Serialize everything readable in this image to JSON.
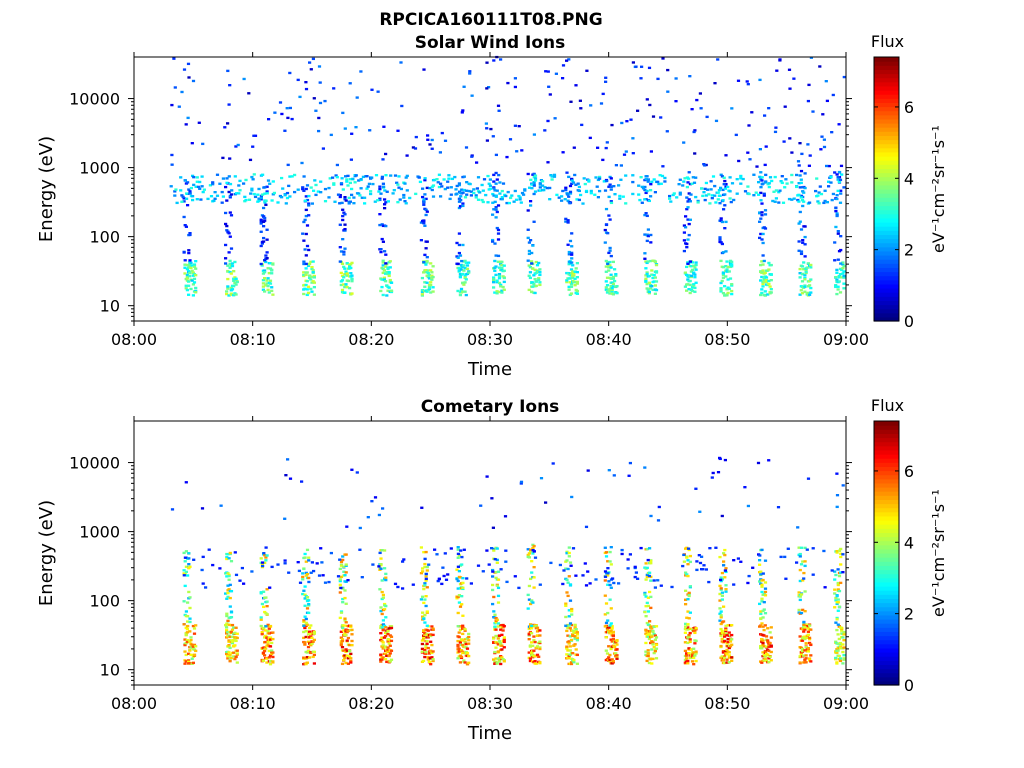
{
  "figure_title": "RPCICA160111T08.PNG",
  "colors": {
    "colormap": [
      "#00007f",
      "#0000ff",
      "#007fff",
      "#00ffff",
      "#7fff7f",
      "#ffff00",
      "#ff7f00",
      "#ff0000",
      "#7f0000"
    ]
  },
  "chart_data": [
    {
      "type": "heatmap",
      "title": "Solar Wind Ions",
      "xlabel": "Time",
      "ylabel": "Energy (eV)",
      "x_ticks": [
        "08:00",
        "08:10",
        "08:20",
        "08:30",
        "08:40",
        "08:50",
        "09:00"
      ],
      "x_range": [
        "08:00",
        "09:00"
      ],
      "y_scale": "log",
      "y_ticks": [
        10,
        100,
        1000,
        10000
      ],
      "y_tick_labels": [
        "10",
        "100",
        "1000",
        "10000"
      ],
      "y_range": [
        6,
        40000
      ],
      "colorbar": {
        "title": "Flux",
        "label": "eV⁻¹cm⁻²sr⁻¹s⁻¹",
        "ticks": [
          0,
          2,
          4,
          6
        ],
        "range": [
          0,
          7.4
        ]
      },
      "pulses": [
        {
          "t": "08:04:30",
          "core_e": [
            14,
            45
          ],
          "core_flux": 3.6,
          "streak_e": [
            40,
            800
          ],
          "streak_flux": 1.0,
          "density": 0.55
        },
        {
          "t": "08:08:00",
          "core_e": [
            14,
            45
          ],
          "core_flux": 3.8,
          "streak_e": [
            40,
            700
          ],
          "streak_flux": 1.0,
          "density": 0.55
        },
        {
          "t": "08:11:00",
          "core_e": [
            14,
            45
          ],
          "core_flux": 3.6,
          "streak_e": [
            40,
            600
          ],
          "streak_flux": 1.0,
          "density": 0.6
        },
        {
          "t": "08:14:30",
          "core_e": [
            14,
            45
          ],
          "core_flux": 3.9,
          "streak_e": [
            40,
            600
          ],
          "streak_flux": 1.0,
          "density": 0.6
        },
        {
          "t": "08:17:40",
          "core_e": [
            14,
            45
          ],
          "core_flux": 3.9,
          "streak_e": [
            40,
            600
          ],
          "streak_flux": 1.0,
          "density": 0.55
        },
        {
          "t": "08:21:00",
          "core_e": [
            14,
            45
          ],
          "core_flux": 3.7,
          "streak_e": [
            40,
            700
          ],
          "streak_flux": 1.0,
          "density": 0.6
        },
        {
          "t": "08:24:30",
          "core_e": [
            14,
            45
          ],
          "core_flux": 3.8,
          "streak_e": [
            40,
            700
          ],
          "streak_flux": 1.0,
          "density": 0.6
        },
        {
          "t": "08:27:30",
          "core_e": [
            14,
            45
          ],
          "core_flux": 3.5,
          "streak_e": [
            40,
            900
          ],
          "streak_flux": 1.2,
          "density": 0.6
        },
        {
          "t": "08:30:30",
          "core_e": [
            14,
            45
          ],
          "core_flux": 3.5,
          "streak_e": [
            40,
            900
          ],
          "streak_flux": 1.2,
          "density": 0.6
        },
        {
          "t": "08:33:30",
          "core_e": [
            14,
            45
          ],
          "core_flux": 3.6,
          "streak_e": [
            40,
            900
          ],
          "streak_flux": 1.2,
          "density": 0.6
        },
        {
          "t": "08:36:40",
          "core_e": [
            14,
            45
          ],
          "core_flux": 3.8,
          "streak_e": [
            40,
            900
          ],
          "streak_flux": 1.2,
          "density": 0.6
        },
        {
          "t": "08:40:00",
          "core_e": [
            14,
            45
          ],
          "core_flux": 3.6,
          "streak_e": [
            40,
            900
          ],
          "streak_flux": 1.2,
          "density": 0.6
        },
        {
          "t": "08:43:20",
          "core_e": [
            14,
            45
          ],
          "core_flux": 3.6,
          "streak_e": [
            40,
            900
          ],
          "streak_flux": 1.2,
          "density": 0.6
        },
        {
          "t": "08:46:40",
          "core_e": [
            14,
            45
          ],
          "core_flux": 3.5,
          "streak_e": [
            40,
            900
          ],
          "streak_flux": 1.2,
          "density": 0.6
        },
        {
          "t": "08:49:40",
          "core_e": [
            14,
            45
          ],
          "core_flux": 3.6,
          "streak_e": [
            40,
            900
          ],
          "streak_flux": 1.2,
          "density": 0.6
        },
        {
          "t": "08:53:00",
          "core_e": [
            14,
            45
          ],
          "core_flux": 3.9,
          "streak_e": [
            40,
            900
          ],
          "streak_flux": 1.2,
          "density": 0.6
        },
        {
          "t": "08:56:20",
          "core_e": [
            14,
            45
          ],
          "core_flux": 3.6,
          "streak_e": [
            40,
            900
          ],
          "streak_flux": 1.2,
          "density": 0.6
        },
        {
          "t": "08:59:20",
          "core_e": [
            14,
            45
          ],
          "core_flux": 3.4,
          "streak_e": [
            40,
            900
          ],
          "streak_flux": 1.2,
          "density": 0.6
        }
      ],
      "band": {
        "t": [
          "08:03:00",
          "09:00:00"
        ],
        "e": [
          300,
          800
        ],
        "flux": 2.6,
        "density": 0.25
      },
      "scatter": {
        "t": [
          "08:03:00",
          "09:00:00"
        ],
        "e": [
          1000,
          40000
        ],
        "flux": 1.0,
        "count": 260
      }
    },
    {
      "type": "heatmap",
      "title": "Cometary Ions",
      "xlabel": "Time",
      "ylabel": "Energy (eV)",
      "x_ticks": [
        "08:00",
        "08:10",
        "08:20",
        "08:30",
        "08:40",
        "08:50",
        "09:00"
      ],
      "x_range": [
        "08:00",
        "09:00"
      ],
      "y_scale": "log",
      "y_ticks": [
        10,
        100,
        1000,
        10000
      ],
      "y_tick_labels": [
        "10",
        "100",
        "1000",
        "10000"
      ],
      "y_range": [
        6,
        40000
      ],
      "colorbar": {
        "title": "Flux",
        "label": "eV⁻¹cm⁻²sr⁻¹s⁻¹",
        "ticks": [
          0,
          2,
          4,
          6
        ],
        "range": [
          0,
          7.4
        ]
      },
      "pulses": [
        {
          "t": "08:04:30",
          "core_e": [
            12,
            45
          ],
          "core_flux": 5.4,
          "streak_e": [
            40,
            600
          ],
          "streak_flux": 3.0,
          "density": 0.8
        },
        {
          "t": "08:08:00",
          "core_e": [
            12,
            45
          ],
          "core_flux": 5.2,
          "streak_e": [
            40,
            500
          ],
          "streak_flux": 3.0,
          "density": 0.8
        },
        {
          "t": "08:11:00",
          "core_e": [
            12,
            45
          ],
          "core_flux": 5.8,
          "streak_e": [
            40,
            500
          ],
          "streak_flux": 3.0,
          "density": 0.8
        },
        {
          "t": "08:14:30",
          "core_e": [
            12,
            45
          ],
          "core_flux": 5.9,
          "streak_e": [
            40,
            600
          ],
          "streak_flux": 3.0,
          "density": 0.8
        },
        {
          "t": "08:17:40",
          "core_e": [
            12,
            45
          ],
          "core_flux": 6.0,
          "streak_e": [
            40,
            500
          ],
          "streak_flux": 3.0,
          "density": 0.8
        },
        {
          "t": "08:21:00",
          "core_e": [
            12,
            45
          ],
          "core_flux": 6.2,
          "streak_e": [
            40,
            600
          ],
          "streak_flux": 3.0,
          "density": 0.8
        },
        {
          "t": "08:24:30",
          "core_e": [
            12,
            45
          ],
          "core_flux": 6.2,
          "streak_e": [
            40,
            600
          ],
          "streak_flux": 3.0,
          "density": 0.8
        },
        {
          "t": "08:27:30",
          "core_e": [
            12,
            45
          ],
          "core_flux": 5.6,
          "streak_e": [
            40,
            600
          ],
          "streak_flux": 3.0,
          "density": 0.8
        },
        {
          "t": "08:30:30",
          "core_e": [
            12,
            45
          ],
          "core_flux": 5.8,
          "streak_e": [
            40,
            600
          ],
          "streak_flux": 3.0,
          "density": 0.8
        },
        {
          "t": "08:33:30",
          "core_e": [
            12,
            45
          ],
          "core_flux": 5.6,
          "streak_e": [
            40,
            700
          ],
          "streak_flux": 3.0,
          "density": 0.8
        },
        {
          "t": "08:36:40",
          "core_e": [
            12,
            45
          ],
          "core_flux": 5.2,
          "streak_e": [
            40,
            600
          ],
          "streak_flux": 3.0,
          "density": 0.8
        },
        {
          "t": "08:40:00",
          "core_e": [
            12,
            45
          ],
          "core_flux": 6.0,
          "streak_e": [
            40,
            600
          ],
          "streak_flux": 3.0,
          "density": 0.8
        },
        {
          "t": "08:43:20",
          "core_e": [
            12,
            45
          ],
          "core_flux": 5.2,
          "streak_e": [
            40,
            600
          ],
          "streak_flux": 3.0,
          "density": 0.8
        },
        {
          "t": "08:46:40",
          "core_e": [
            12,
            45
          ],
          "core_flux": 5.8,
          "streak_e": [
            40,
            600
          ],
          "streak_flux": 3.0,
          "density": 0.8
        },
        {
          "t": "08:49:40",
          "core_e": [
            12,
            45
          ],
          "core_flux": 6.0,
          "streak_e": [
            40,
            600
          ],
          "streak_flux": 3.0,
          "density": 0.8
        },
        {
          "t": "08:53:00",
          "core_e": [
            12,
            45
          ],
          "core_flux": 6.0,
          "streak_e": [
            40,
            600
          ],
          "streak_flux": 3.0,
          "density": 0.8
        },
        {
          "t": "08:56:20",
          "core_e": [
            12,
            45
          ],
          "core_flux": 5.6,
          "streak_e": [
            40,
            600
          ],
          "streak_flux": 3.0,
          "density": 0.8
        },
        {
          "t": "08:59:20",
          "core_e": [
            12,
            45
          ],
          "core_flux": 4.8,
          "streak_e": [
            40,
            600
          ],
          "streak_flux": 3.0,
          "density": 0.8
        }
      ],
      "band": {
        "t": [
          "08:04:00",
          "09:00:00"
        ],
        "e": [
          150,
          600
        ],
        "flux": 1.4,
        "density": 0.08
      },
      "scatter": {
        "t": [
          "08:03:00",
          "09:00:00"
        ],
        "e": [
          1000,
          12000
        ],
        "flux": 1.0,
        "count": 60
      }
    }
  ]
}
